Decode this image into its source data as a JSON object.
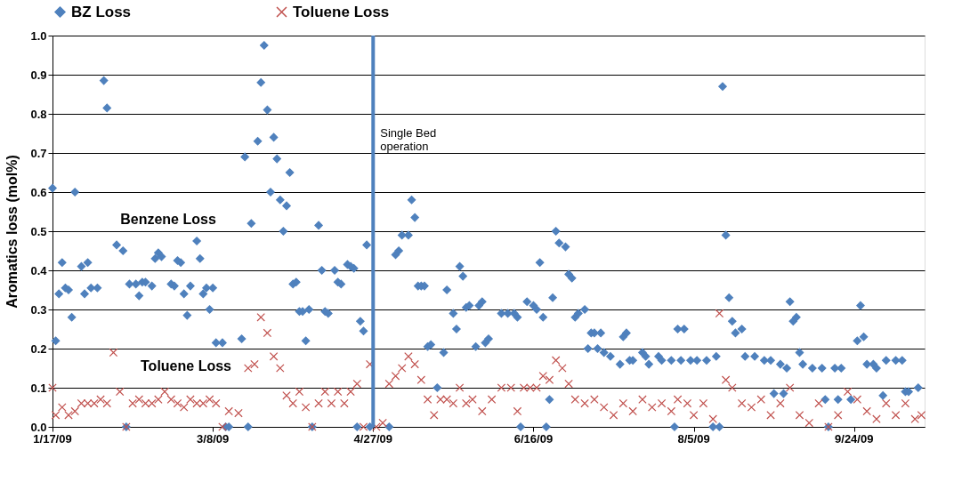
{
  "chart_data": {
    "type": "scatter",
    "ylabel": "Aromatics loss (mol%)",
    "xlim": [
      "2009-01-17",
      "2009-10-16"
    ],
    "xticks": [
      {
        "value": "2009-01-17",
        "label": "1/17/09"
      },
      {
        "value": "2009-03-08",
        "label": "3/8/09"
      },
      {
        "value": "2009-04-27",
        "label": "4/27/09"
      },
      {
        "value": "2009-06-16",
        "label": "6/16/09"
      },
      {
        "value": "2009-08-05",
        "label": "8/5/09"
      },
      {
        "value": "2009-09-24",
        "label": "9/24/09"
      }
    ],
    "ylim": [
      0,
      1
    ],
    "yticks": [
      {
        "value": 0,
        "label": "0.0"
      },
      0.1,
      0.2,
      0.3,
      0.4,
      0.5,
      0.6,
      0.7,
      0.8,
      0.9,
      {
        "value": 1,
        "label": "1.0"
      }
    ],
    "grid": "y",
    "legend": "top",
    "ref_lines": [
      {
        "axis": "x",
        "value": "2009-04-27",
        "label": "Single Bed\noperation",
        "color": "#4f81bd"
      }
    ],
    "annotations": [
      "Benzene Loss",
      "Toluene Loss"
    ],
    "series": [
      {
        "name": "BZ Loss",
        "color": "#4f81bd",
        "marker": "diamond",
        "x": [
          "2009-01-17",
          "2009-01-18",
          "2009-01-19",
          "2009-01-20",
          "2009-01-21",
          "2009-01-22",
          "2009-01-23",
          "2009-01-24",
          "2009-01-26",
          "2009-01-27",
          "2009-01-28",
          "2009-01-29",
          "2009-01-31",
          "2009-02-02",
          "2009-02-03",
          "2009-02-06",
          "2009-02-08",
          "2009-02-09",
          "2009-02-10",
          "2009-02-12",
          "2009-02-13",
          "2009-02-14",
          "2009-02-15",
          "2009-02-17",
          "2009-02-18",
          "2009-02-19",
          "2009-02-20",
          "2009-02-23",
          "2009-02-24",
          "2009-02-25",
          "2009-02-26",
          "2009-02-27",
          "2009-02-28",
          "2009-03-01",
          "2009-03-03",
          "2009-03-04",
          "2009-03-05",
          "2009-03-06",
          "2009-03-07",
          "2009-03-08",
          "2009-03-09",
          "2009-03-11",
          "2009-03-12",
          "2009-03-13",
          "2009-03-17",
          "2009-03-18",
          "2009-03-19",
          "2009-03-20",
          "2009-03-22",
          "2009-03-23",
          "2009-03-24",
          "2009-03-25",
          "2009-03-26",
          "2009-03-27",
          "2009-03-28",
          "2009-03-29",
          "2009-03-30",
          "2009-03-31",
          "2009-04-01",
          "2009-04-02",
          "2009-04-03",
          "2009-04-04",
          "2009-04-05",
          "2009-04-06",
          "2009-04-07",
          "2009-04-08",
          "2009-04-10",
          "2009-04-11",
          "2009-04-12",
          "2009-04-13",
          "2009-04-15",
          "2009-04-16",
          "2009-04-17",
          "2009-04-19",
          "2009-04-20",
          "2009-04-21",
          "2009-04-22",
          "2009-04-23",
          "2009-04-24",
          "2009-04-25",
          "2009-04-26",
          "2009-05-02",
          "2009-05-04",
          "2009-05-05",
          "2009-05-06",
          "2009-05-08",
          "2009-05-09",
          "2009-05-10",
          "2009-05-11",
          "2009-05-12",
          "2009-05-13",
          "2009-05-14",
          "2009-05-15",
          "2009-05-17",
          "2009-05-19",
          "2009-05-20",
          "2009-05-22",
          "2009-05-23",
          "2009-05-24",
          "2009-05-25",
          "2009-05-26",
          "2009-05-27",
          "2009-05-29",
          "2009-05-30",
          "2009-05-31",
          "2009-06-01",
          "2009-06-02",
          "2009-06-06",
          "2009-06-08",
          "2009-06-10",
          "2009-06-11",
          "2009-06-12",
          "2009-06-14",
          "2009-06-16",
          "2009-06-17",
          "2009-06-18",
          "2009-06-19",
          "2009-06-20",
          "2009-06-21",
          "2009-06-22",
          "2009-06-23",
          "2009-06-24",
          "2009-06-26",
          "2009-06-27",
          "2009-06-28",
          "2009-06-29",
          "2009-06-30",
          "2009-07-02",
          "2009-07-03",
          "2009-07-04",
          "2009-07-05",
          "2009-07-06",
          "2009-07-07",
          "2009-07-08",
          "2009-07-10",
          "2009-07-13",
          "2009-07-14",
          "2009-07-15",
          "2009-07-16",
          "2009-07-17",
          "2009-07-20",
          "2009-07-21",
          "2009-07-22",
          "2009-07-25",
          "2009-07-26",
          "2009-07-29",
          "2009-07-30",
          "2009-07-31",
          "2009-08-01",
          "2009-08-02",
          "2009-08-04",
          "2009-08-06",
          "2009-08-09",
          "2009-08-11",
          "2009-08-12",
          "2009-08-13",
          "2009-08-14",
          "2009-08-15",
          "2009-08-16",
          "2009-08-17",
          "2009-08-18",
          "2009-08-20",
          "2009-08-21",
          "2009-08-24",
          "2009-08-27",
          "2009-08-29",
          "2009-08-30",
          "2009-09-01",
          "2009-09-02",
          "2009-09-03",
          "2009-09-04",
          "2009-09-05",
          "2009-09-06",
          "2009-09-07",
          "2009-09-08",
          "2009-09-11",
          "2009-09-14",
          "2009-09-15",
          "2009-09-16",
          "2009-09-18",
          "2009-09-19",
          "2009-09-20",
          "2009-09-23",
          "2009-09-25",
          "2009-09-26",
          "2009-09-27",
          "2009-09-28",
          "2009-09-30",
          "2009-10-01",
          "2009-10-03",
          "2009-10-04",
          "2009-10-07",
          "2009-10-09",
          "2009-10-10",
          "2009-10-11",
          "2009-10-14"
        ],
        "values": [
          0.61,
          0.22,
          0.34,
          0.42,
          0.355,
          0.35,
          0.28,
          0.6,
          0.41,
          0.34,
          0.42,
          0.355,
          0.355,
          0.885,
          0.815,
          0.465,
          0.45,
          0,
          0.365,
          0.365,
          0.335,
          0.37,
          0.37,
          0.36,
          0.43,
          0.445,
          0.435,
          0.365,
          0.36,
          0.425,
          0.42,
          0.34,
          0.285,
          0.36,
          0.475,
          0.43,
          0.34,
          0.355,
          0.3,
          0.355,
          0.215,
          0.215,
          0,
          0,
          0.225,
          0.69,
          0,
          0.52,
          0.73,
          0.88,
          0.975,
          0.81,
          0.6,
          0.74,
          0.685,
          0.58,
          0.5,
          0.565,
          0.65,
          0.365,
          0.37,
          0.295,
          0.295,
          0.22,
          0.3,
          0,
          0.515,
          0.4,
          0.295,
          0.29,
          0.4,
          0.37,
          0.365,
          0.415,
          0.41,
          0.405,
          0,
          0.27,
          0.245,
          0.465,
          0,
          0,
          0.44,
          0.45,
          0.49,
          0.49,
          0.58,
          0.535,
          0.36,
          0.36,
          0.36,
          0.205,
          0.21,
          0.1,
          0.19,
          0.35,
          0.29,
          0.25,
          0.41,
          0.385,
          0.305,
          0.31,
          0.205,
          0.31,
          0.32,
          0.215,
          0.225,
          0.29,
          0.29,
          0.29,
          0.28,
          0,
          0.32,
          0.31,
          0.3,
          0.42,
          0.28,
          0,
          0.07,
          0.33,
          0.5,
          0.47,
          0.46,
          0.39,
          0.38,
          0.28,
          0.29,
          0.3,
          0.2,
          0.24,
          0.24,
          0.2,
          0.24,
          0.19,
          0.18,
          0.16,
          0.23,
          0.24,
          0.17,
          0.17,
          0.19,
          0.18,
          0.16,
          0.18,
          0.17,
          0.17,
          0,
          0.25,
          0.17,
          0.25,
          0.17,
          0.17,
          0.17,
          0,
          0.18,
          0,
          0.87,
          0.49,
          0.33,
          0.27,
          0.24,
          0.25,
          0.18,
          0.18,
          0.17,
          0.17,
          0.085,
          0.16,
          0.085,
          0.15,
          0.32,
          0.27,
          0.28,
          0.19,
          0.16,
          0.15,
          0.15,
          0.07,
          0,
          0.15,
          0.07,
          0.15,
          0.07,
          0.22,
          0.31,
          0.23,
          0.16,
          0.16,
          0.15,
          0.08,
          0.17,
          0.17,
          0.17,
          0.09,
          0.09,
          0.1
        ]
      },
      {
        "name": "Toluene Loss",
        "color": "#c0504d",
        "marker": "cross",
        "x": [
          "2009-01-17",
          "2009-01-18",
          "2009-01-20",
          "2009-01-22",
          "2009-01-24",
          "2009-01-26",
          "2009-01-28",
          "2009-01-30",
          "2009-02-01",
          "2009-02-03",
          "2009-02-05",
          "2009-02-07",
          "2009-02-09",
          "2009-02-11",
          "2009-02-13",
          "2009-02-15",
          "2009-02-17",
          "2009-02-19",
          "2009-02-21",
          "2009-02-23",
          "2009-02-25",
          "2009-02-27",
          "2009-03-01",
          "2009-03-03",
          "2009-03-05",
          "2009-03-07",
          "2009-03-09",
          "2009-03-11",
          "2009-03-13",
          "2009-03-16",
          "2009-03-19",
          "2009-03-21",
          "2009-03-23",
          "2009-03-25",
          "2009-03-27",
          "2009-03-29",
          "2009-03-31",
          "2009-04-02",
          "2009-04-04",
          "2009-04-06",
          "2009-04-08",
          "2009-04-10",
          "2009-04-12",
          "2009-04-14",
          "2009-04-16",
          "2009-04-18",
          "2009-04-20",
          "2009-04-22",
          "2009-04-24",
          "2009-04-26",
          "2009-04-28",
          "2009-04-30",
          "2009-05-02",
          "2009-05-04",
          "2009-05-06",
          "2009-05-08",
          "2009-05-10",
          "2009-05-12",
          "2009-05-14",
          "2009-05-16",
          "2009-05-18",
          "2009-05-20",
          "2009-05-22",
          "2009-05-24",
          "2009-05-26",
          "2009-05-28",
          "2009-05-31",
          "2009-06-03",
          "2009-06-06",
          "2009-06-09",
          "2009-06-11",
          "2009-06-13",
          "2009-06-15",
          "2009-06-17",
          "2009-06-19",
          "2009-06-21",
          "2009-06-23",
          "2009-06-25",
          "2009-06-27",
          "2009-06-29",
          "2009-07-02",
          "2009-07-05",
          "2009-07-08",
          "2009-07-11",
          "2009-07-14",
          "2009-07-17",
          "2009-07-20",
          "2009-07-23",
          "2009-07-26",
          "2009-07-29",
          "2009-07-31",
          "2009-08-03",
          "2009-08-05",
          "2009-08-08",
          "2009-08-11",
          "2009-08-13",
          "2009-08-15",
          "2009-08-17",
          "2009-08-20",
          "2009-08-23",
          "2009-08-26",
          "2009-08-29",
          "2009-09-01",
          "2009-09-04",
          "2009-09-07",
          "2009-09-10",
          "2009-09-13",
          "2009-09-16",
          "2009-09-19",
          "2009-09-22",
          "2009-09-25",
          "2009-09-28",
          "2009-10-01",
          "2009-10-04",
          "2009-10-07",
          "2009-10-10",
          "2009-10-13",
          "2009-10-15"
        ],
        "values": [
          0.1,
          0.03,
          0.05,
          0.03,
          0.04,
          0.06,
          0.06,
          0.06,
          0.07,
          0.06,
          0.19,
          0.09,
          0,
          0.06,
          0.07,
          0.06,
          0.06,
          0.07,
          0.09,
          0.07,
          0.06,
          0.05,
          0.07,
          0.06,
          0.06,
          0.07,
          0.06,
          0,
          0.04,
          0.035,
          0.15,
          0.16,
          0.28,
          0.24,
          0.18,
          0.15,
          0.08,
          0.06,
          0.09,
          0.05,
          0,
          0.06,
          0.09,
          0.06,
          0.09,
          0.06,
          0.09,
          0.11,
          0,
          0.16,
          0,
          0.01,
          0.11,
          0.13,
          0.15,
          0.18,
          0.16,
          0.12,
          0.07,
          0.03,
          0.07,
          0.07,
          0.06,
          0.1,
          0.06,
          0.07,
          0.04,
          0.07,
          0.1,
          0.1,
          0.04,
          0.1,
          0.1,
          0.1,
          0.13,
          0.12,
          0.17,
          0.15,
          0.11,
          0.07,
          0.06,
          0.07,
          0.05,
          0.03,
          0.06,
          0.04,
          0.07,
          0.05,
          0.06,
          0.04,
          0.07,
          0.06,
          0.03,
          0.06,
          0.02,
          0.29,
          0.12,
          0.1,
          0.06,
          0.05,
          0.07,
          0.03,
          0.06,
          0.1,
          0.03,
          0.01,
          0.06,
          0,
          0.03,
          0.09,
          0.07,
          0.04,
          0.02,
          0.06,
          0.03,
          0.06,
          0.02,
          0.03
        ]
      }
    ]
  }
}
